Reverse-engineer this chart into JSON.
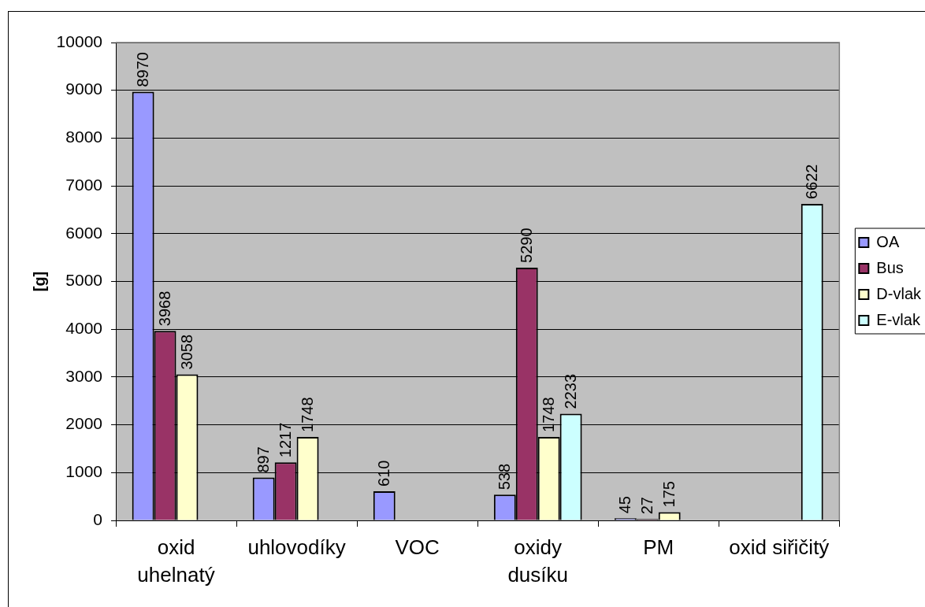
{
  "chart_data": {
    "type": "bar",
    "categories": [
      "oxid\nuhelnatý",
      "uhlovodíky",
      "VOC",
      "oxidy\ndusíku",
      "PM",
      "oxid siřičitý"
    ],
    "ylabel": "[g]",
    "ylim": [
      0,
      10000
    ],
    "yticks": [
      0,
      1000,
      2000,
      3000,
      4000,
      5000,
      6000,
      7000,
      8000,
      9000,
      10000
    ],
    "grid": "y",
    "legend": "right",
    "data_labels": true,
    "series": [
      {
        "name": "OA",
        "color": "#9999ff",
        "values": [
          8970,
          897,
          610,
          538,
          45,
          null
        ]
      },
      {
        "name": "Bus",
        "color": "#993366",
        "values": [
          3968,
          1217,
          null,
          5290,
          27,
          null
        ]
      },
      {
        "name": "D-vlak",
        "color": "#ffffcc",
        "values": [
          3058,
          1748,
          null,
          1748,
          175,
          null
        ]
      },
      {
        "name": "E-vlak",
        "color": "#ccffff",
        "values": [
          null,
          null,
          null,
          2233,
          null,
          6622
        ]
      }
    ]
  }
}
